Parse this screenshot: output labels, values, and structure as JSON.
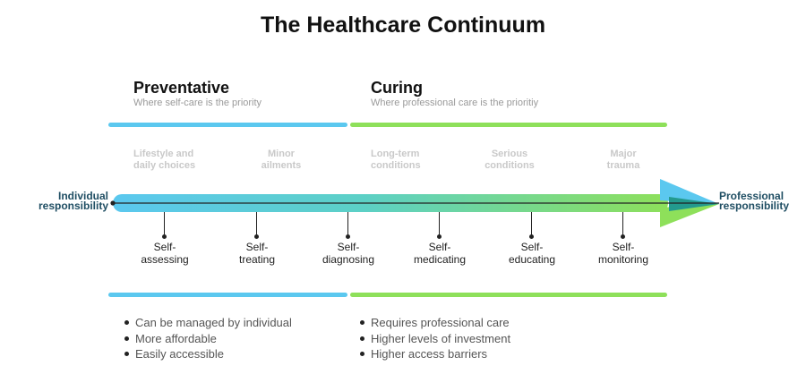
{
  "title": "The Healthcare Continuum",
  "colors": {
    "blue": "#5bc8ef",
    "green": "#8ee05a",
    "teal_tip": "#239a8e",
    "end_label": "#1f4e63"
  },
  "preventative": {
    "title": "Preventative",
    "subtitle": "Where self-care is the priority",
    "bullets": [
      "Can be managed by individual",
      "More affordable",
      "Easily accessible"
    ]
  },
  "curing": {
    "title": "Curing",
    "subtitle": "Where professional care is the prioritiy",
    "bullets": [
      "Requires professional care",
      "Higher levels of investment",
      "Higher access barriers"
    ]
  },
  "categories": [
    {
      "line1": "Lifestyle and",
      "line2": "daily choices"
    },
    {
      "line1": "Minor",
      "line2": "ailments"
    },
    {
      "line1": "Long-term",
      "line2": "conditions"
    },
    {
      "line1": "Serious",
      "line2": "conditions"
    },
    {
      "line1": "Major",
      "line2": "trauma"
    }
  ],
  "ends": {
    "left": {
      "line1": "Individual",
      "line2": "responsibility"
    },
    "right": {
      "line1": "Professional",
      "line2": "responsibility"
    }
  },
  "steps": [
    {
      "line1": "Self-",
      "line2": "assessing"
    },
    {
      "line1": "Self-",
      "line2": "treating"
    },
    {
      "line1": "Self-",
      "line2": "diagnosing"
    },
    {
      "line1": "Self-",
      "line2": "medicating"
    },
    {
      "line1": "Self-",
      "line2": "educating"
    },
    {
      "line1": "Self-",
      "line2": "monitoring"
    }
  ]
}
